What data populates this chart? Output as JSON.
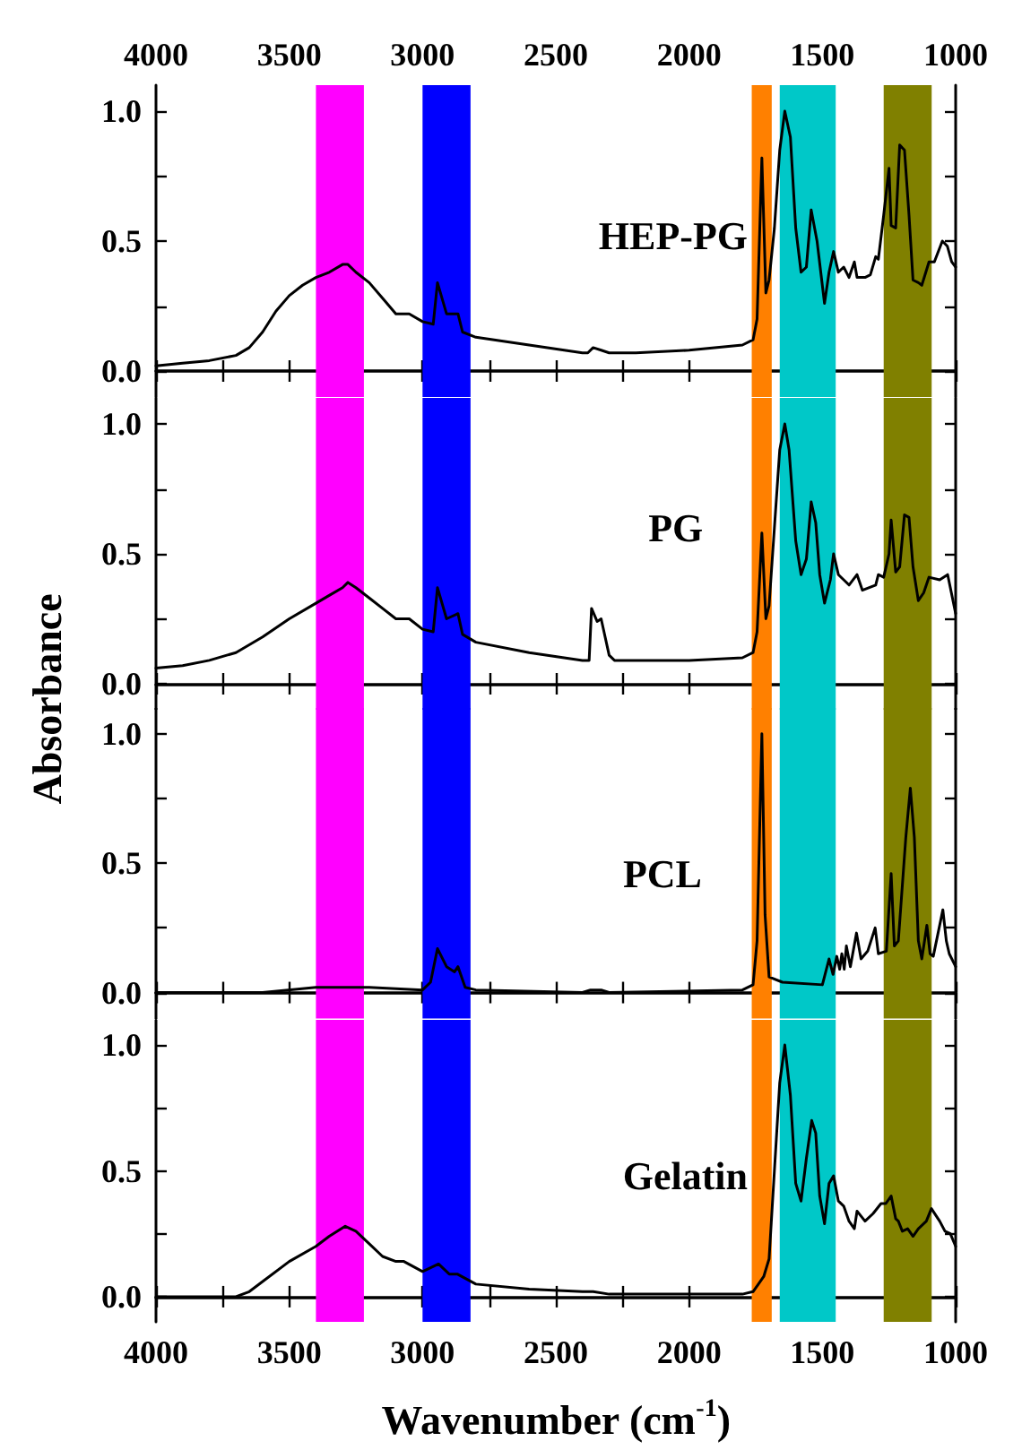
{
  "chart_data": [
    {
      "type": "line",
      "ylabel": "Absorbance",
      "xlim": [
        4000,
        1000
      ],
      "x2lim": [
        4000,
        1000
      ],
      "xticks": [
        4000,
        {
          "value": 3750,
          "label": null
        },
        3500,
        {
          "value": 3250,
          "label": null
        },
        3000,
        {
          "value": 2750,
          "label": null
        },
        2500,
        {
          "value": 2250,
          "label": null
        },
        2000,
        {
          "value": 1750,
          "label": null
        },
        1500,
        {
          "value": 1250,
          "label": null
        },
        1000
      ],
      "x2ticks": [
        4000,
        {
          "value": 3750,
          "label": null
        },
        3500,
        {
          "value": 3250,
          "label": null
        },
        3000,
        {
          "value": 2750,
          "label": null
        },
        2500,
        {
          "value": 2250,
          "label": null
        },
        2000,
        {
          "value": 1750,
          "label": null
        },
        1500,
        {
          "value": 1250,
          "label": null
        },
        1000
      ],
      "ylim": [
        -0.1,
        1.1
      ],
      "yticks": [
        {
          "value": 0,
          "label": "0.0"
        },
        {
          "value": 0.25,
          "label": null
        },
        {
          "value": 0.5,
          "label": "0.5"
        },
        {
          "value": 0.75,
          "label": null
        },
        {
          "value": 1,
          "label": "1.0"
        }
      ],
      "tick_labels": "y",
      "bands": [
        {
          "axis": "x",
          "from": 3400,
          "to": 3220,
          "color": "#ff00ff"
        },
        {
          "axis": "x",
          "from": 3000,
          "to": 2820,
          "color": "#0000ff"
        },
        {
          "axis": "x",
          "from": 1765,
          "to": 1690,
          "color": "#ff8000"
        },
        {
          "axis": "x",
          "from": 1660,
          "to": 1450,
          "color": "#00c8c8"
        },
        {
          "axis": "x",
          "from": 1270,
          "to": 1090,
          "color": "#808000"
        }
      ],
      "series": [
        {
          "name": "HEP-PG",
          "color": "#000000",
          "x": [
            4000,
            3900,
            3800,
            3700,
            3650,
            3600,
            3550,
            3500,
            3450,
            3400,
            3350,
            3300,
            3280,
            3250,
            3200,
            3150,
            3100,
            3050,
            3000,
            2960,
            2944,
            2910,
            2867,
            2850,
            2800,
            2600,
            2400,
            2380,
            2360,
            2330,
            2300,
            2200,
            2000,
            1800,
            1760,
            1745,
            1727,
            1712,
            1700,
            1680,
            1660,
            1641,
            1620,
            1600,
            1580,
            1560,
            1542,
            1520,
            1492,
            1475,
            1458,
            1440,
            1420,
            1400,
            1380,
            1370,
            1340,
            1320,
            1300,
            1290,
            1270,
            1250,
            1242,
            1225,
            1210,
            1192,
            1175,
            1160,
            1140,
            1127,
            1100,
            1080,
            1050,
            1031,
            1015,
            1000
          ],
          "values": [
            0.02,
            0.03,
            0.04,
            0.06,
            0.09,
            0.15,
            0.23,
            0.29,
            0.33,
            0.36,
            0.38,
            0.41,
            0.41,
            0.38,
            0.34,
            0.28,
            0.22,
            0.22,
            0.19,
            0.18,
            0.34,
            0.22,
            0.22,
            0.15,
            0.13,
            0.1,
            0.07,
            0.07,
            0.09,
            0.08,
            0.07,
            0.07,
            0.08,
            0.1,
            0.12,
            0.2,
            0.82,
            0.3,
            0.35,
            0.55,
            0.85,
            1.0,
            0.9,
            0.55,
            0.38,
            0.4,
            0.62,
            0.5,
            0.26,
            0.38,
            0.46,
            0.38,
            0.4,
            0.36,
            0.42,
            0.36,
            0.36,
            0.37,
            0.44,
            0.43,
            0.6,
            0.78,
            0.56,
            0.55,
            0.87,
            0.85,
            0.6,
            0.35,
            0.34,
            0.33,
            0.42,
            0.42,
            0.5,
            0.48,
            0.42,
            0.4
          ]
        }
      ]
    },
    {
      "type": "line",
      "xlim": [
        4000,
        1000
      ],
      "xticks": [
        4000,
        {
          "value": 3750,
          "label": null
        },
        3500,
        {
          "value": 3250,
          "label": null
        },
        3000,
        {
          "value": 2750,
          "label": null
        },
        2500,
        {
          "value": 2250,
          "label": null
        },
        2000,
        {
          "value": 1750,
          "label": null
        },
        1500,
        {
          "value": 1250,
          "label": null
        },
        1000
      ],
      "ylim": [
        -0.1,
        1.1
      ],
      "yticks": [
        {
          "value": 0,
          "label": "0.0"
        },
        {
          "value": 0.25,
          "label": null
        },
        {
          "value": 0.5,
          "label": "0.5"
        },
        {
          "value": 0.75,
          "label": null
        },
        {
          "value": 1,
          "label": "1.0"
        }
      ],
      "tick_labels": "y",
      "bands": [
        {
          "axis": "x",
          "from": 3400,
          "to": 3220,
          "color": "#ff00ff"
        },
        {
          "axis": "x",
          "from": 3000,
          "to": 2820,
          "color": "#0000ff"
        },
        {
          "axis": "x",
          "from": 1765,
          "to": 1690,
          "color": "#ff8000"
        },
        {
          "axis": "x",
          "from": 1660,
          "to": 1450,
          "color": "#00c8c8"
        },
        {
          "axis": "x",
          "from": 1270,
          "to": 1090,
          "color": "#808000"
        }
      ],
      "series": [
        {
          "name": "PG",
          "color": "#000000",
          "x": [
            4000,
            3900,
            3800,
            3700,
            3600,
            3500,
            3400,
            3350,
            3300,
            3280,
            3250,
            3200,
            3150,
            3100,
            3050,
            3000,
            2960,
            2944,
            2910,
            2867,
            2850,
            2800,
            2600,
            2400,
            2375,
            2366,
            2345,
            2330,
            2300,
            2280,
            2000,
            1800,
            1760,
            1745,
            1727,
            1712,
            1700,
            1680,
            1660,
            1641,
            1625,
            1600,
            1580,
            1560,
            1542,
            1525,
            1510,
            1492,
            1470,
            1458,
            1440,
            1420,
            1400,
            1370,
            1350,
            1300,
            1290,
            1270,
            1250,
            1242,
            1225,
            1210,
            1192,
            1175,
            1160,
            1140,
            1120,
            1100,
            1060,
            1030,
            1000
          ],
          "values": [
            0.06,
            0.07,
            0.09,
            0.12,
            0.18,
            0.25,
            0.31,
            0.34,
            0.37,
            0.39,
            0.37,
            0.33,
            0.29,
            0.25,
            0.25,
            0.21,
            0.2,
            0.37,
            0.25,
            0.27,
            0.19,
            0.16,
            0.12,
            0.09,
            0.09,
            0.29,
            0.24,
            0.25,
            0.11,
            0.09,
            0.09,
            0.1,
            0.12,
            0.2,
            0.58,
            0.25,
            0.3,
            0.6,
            0.9,
            1.0,
            0.9,
            0.55,
            0.42,
            0.48,
            0.7,
            0.62,
            0.42,
            0.31,
            0.4,
            0.5,
            0.42,
            0.4,
            0.38,
            0.42,
            0.36,
            0.38,
            0.42,
            0.41,
            0.5,
            0.63,
            0.43,
            0.45,
            0.65,
            0.64,
            0.45,
            0.32,
            0.35,
            0.41,
            0.4,
            0.42,
            0.27
          ]
        }
      ]
    },
    {
      "type": "line",
      "xlim": [
        4000,
        1000
      ],
      "xticks": [
        4000,
        {
          "value": 3750,
          "label": null
        },
        3500,
        {
          "value": 3250,
          "label": null
        },
        3000,
        {
          "value": 2750,
          "label": null
        },
        2500,
        {
          "value": 2250,
          "label": null
        },
        2000,
        {
          "value": 1750,
          "label": null
        },
        1500,
        {
          "value": 1250,
          "label": null
        },
        1000
      ],
      "ylim": [
        -0.1,
        1.1
      ],
      "yticks": [
        {
          "value": 0,
          "label": "0.0"
        },
        {
          "value": 0.25,
          "label": null
        },
        {
          "value": 0.5,
          "label": "0.5"
        },
        {
          "value": 0.75,
          "label": null
        },
        {
          "value": 1,
          "label": "1.0"
        }
      ],
      "tick_labels": "y",
      "bands": [
        {
          "axis": "x",
          "from": 3400,
          "to": 3220,
          "color": "#ff00ff"
        },
        {
          "axis": "x",
          "from": 3000,
          "to": 2820,
          "color": "#0000ff"
        },
        {
          "axis": "x",
          "from": 1765,
          "to": 1690,
          "color": "#ff8000"
        },
        {
          "axis": "x",
          "from": 1660,
          "to": 1450,
          "color": "#00c8c8"
        },
        {
          "axis": "x",
          "from": 1270,
          "to": 1090,
          "color": "#808000"
        }
      ],
      "series": [
        {
          "name": "PCL",
          "color": "#000000",
          "x": [
            4000,
            3600,
            3400,
            3200,
            3000,
            2970,
            2944,
            2910,
            2880,
            2867,
            2840,
            2800,
            2400,
            2370,
            2330,
            2300,
            1800,
            1760,
            1745,
            1727,
            1715,
            1700,
            1650,
            1500,
            1475,
            1460,
            1446,
            1435,
            1427,
            1418,
            1410,
            1395,
            1372,
            1355,
            1330,
            1302,
            1290,
            1260,
            1242,
            1230,
            1215,
            1187,
            1170,
            1155,
            1140,
            1127,
            1108,
            1096,
            1084,
            1048,
            1035,
            1024,
            1000
          ],
          "values": [
            0.0,
            0.0,
            0.02,
            0.02,
            0.01,
            0.04,
            0.17,
            0.1,
            0.08,
            0.1,
            0.02,
            0.01,
            0.0,
            0.01,
            0.01,
            0.0,
            0.01,
            0.03,
            0.2,
            1.0,
            0.3,
            0.06,
            0.04,
            0.03,
            0.13,
            0.07,
            0.14,
            0.09,
            0.15,
            0.09,
            0.18,
            0.1,
            0.23,
            0.13,
            0.16,
            0.25,
            0.15,
            0.16,
            0.46,
            0.18,
            0.2,
            0.6,
            0.79,
            0.6,
            0.2,
            0.13,
            0.26,
            0.15,
            0.14,
            0.32,
            0.2,
            0.15,
            0.1
          ]
        }
      ]
    },
    {
      "type": "line",
      "xlabel": "Wavenumber (cm$^{-1}$)",
      "xlim": [
        4000,
        1000
      ],
      "xticks": [
        4000,
        {
          "value": 3750,
          "label": null
        },
        3500,
        {
          "value": 3250,
          "label": null
        },
        3000,
        {
          "value": 2750,
          "label": null
        },
        2500,
        {
          "value": 2250,
          "label": null
        },
        2000,
        {
          "value": 1750,
          "label": null
        },
        1500,
        {
          "value": 1250,
          "label": null
        },
        1000
      ],
      "ylim": [
        -0.1,
        1.1
      ],
      "yticks": [
        {
          "value": 0,
          "label": "0.0"
        },
        {
          "value": 0.25,
          "label": null
        },
        {
          "value": 0.5,
          "label": "0.5"
        },
        {
          "value": 0.75,
          "label": null
        },
        {
          "value": 1,
          "label": "1.0"
        }
      ],
      "bands": [
        {
          "axis": "x",
          "from": 3400,
          "to": 3220,
          "color": "#ff00ff"
        },
        {
          "axis": "x",
          "from": 3000,
          "to": 2820,
          "color": "#0000ff"
        },
        {
          "axis": "x",
          "from": 1765,
          "to": 1690,
          "color": "#ff8000"
        },
        {
          "axis": "x",
          "from": 1660,
          "to": 1450,
          "color": "#00c8c8"
        },
        {
          "axis": "x",
          "from": 1270,
          "to": 1090,
          "color": "#808000"
        }
      ],
      "series": [
        {
          "name": "Gelatin",
          "color": "#000000",
          "x": [
            4000,
            3700,
            3650,
            3600,
            3500,
            3400,
            3350,
            3290,
            3250,
            3200,
            3150,
            3100,
            3070,
            3000,
            2940,
            2900,
            2870,
            2800,
            2600,
            2400,
            2360,
            2300,
            2000,
            1800,
            1760,
            1720,
            1700,
            1680,
            1660,
            1641,
            1620,
            1600,
            1580,
            1560,
            1540,
            1525,
            1510,
            1492,
            1475,
            1458,
            1440,
            1420,
            1400,
            1380,
            1370,
            1340,
            1310,
            1280,
            1262,
            1242,
            1225,
            1215,
            1200,
            1180,
            1160,
            1140,
            1110,
            1091,
            1060,
            1040,
            1020,
            1000
          ],
          "values": [
            0.0,
            0.0,
            0.02,
            0.06,
            0.14,
            0.2,
            0.24,
            0.28,
            0.26,
            0.21,
            0.16,
            0.14,
            0.14,
            0.1,
            0.13,
            0.09,
            0.09,
            0.05,
            0.03,
            0.02,
            0.02,
            0.01,
            0.01,
            0.01,
            0.02,
            0.08,
            0.15,
            0.5,
            0.85,
            1.0,
            0.8,
            0.45,
            0.38,
            0.55,
            0.7,
            0.65,
            0.4,
            0.29,
            0.45,
            0.48,
            0.38,
            0.36,
            0.3,
            0.27,
            0.34,
            0.3,
            0.33,
            0.37,
            0.37,
            0.4,
            0.31,
            0.3,
            0.26,
            0.27,
            0.24,
            0.27,
            0.3,
            0.35,
            0.3,
            0.26,
            0.25,
            0.2
          ]
        }
      ]
    }
  ]
}
